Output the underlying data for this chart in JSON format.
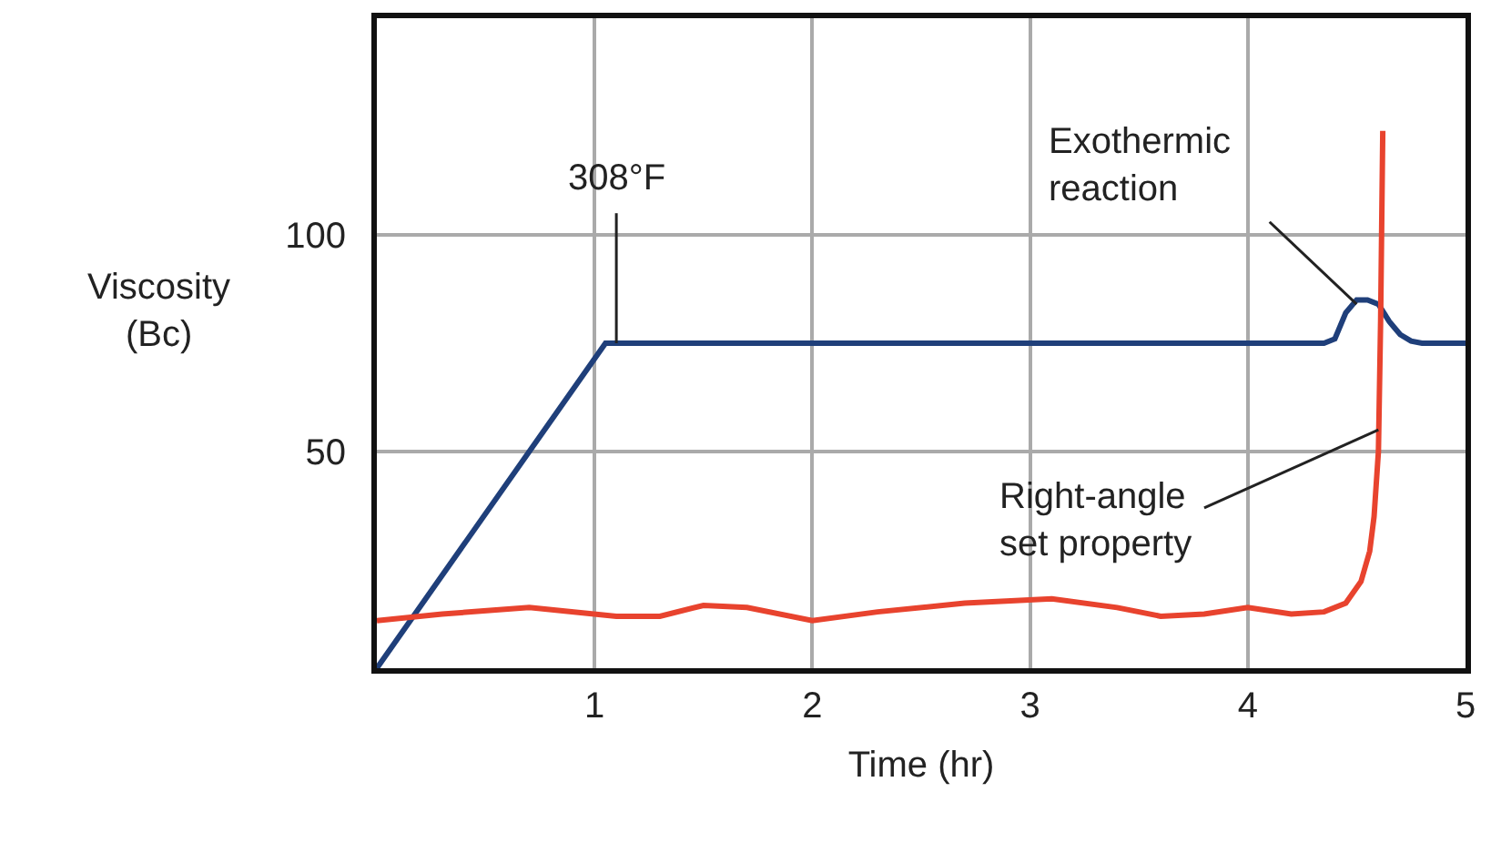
{
  "chart_data": {
    "type": "line",
    "xlabel": "Time (hr)",
    "ylabel": "Viscosity\n(Bc)",
    "xlim": [
      0,
      5
    ],
    "ylim": [
      0,
      150
    ],
    "xticks": [
      1,
      2,
      3,
      4,
      5
    ],
    "yticks": [
      50,
      100
    ],
    "grid": true,
    "marker": "none",
    "line_style": "solid",
    "series": [
      {
        "color": "#1f3f7a",
        "x": [
          0,
          1.05,
          4.35,
          4.4,
          4.45,
          4.5,
          4.55,
          4.6,
          4.65,
          4.7,
          4.75,
          4.8,
          4.9,
          5
        ],
        "values": [
          0,
          75,
          75,
          76,
          82,
          85,
          85,
          84,
          80,
          77,
          75.5,
          75,
          75,
          75
        ]
      },
      {
        "color": "#e8432e",
        "x": [
          0,
          0.3,
          0.7,
          1.1,
          1.3,
          1.5,
          1.7,
          2,
          2.3,
          2.7,
          3.1,
          3.4,
          3.6,
          3.8,
          4,
          4.2,
          4.35,
          4.45,
          4.52,
          4.56,
          4.58,
          4.6,
          4.61,
          4.62
        ],
        "values": [
          11,
          12.5,
          14,
          12,
          12,
          14.5,
          14,
          11,
          13,
          15,
          16,
          14,
          12,
          12.5,
          14,
          12.5,
          13,
          15,
          20,
          27,
          35,
          50,
          80,
          124
        ]
      }
    ],
    "annotations": [
      {
        "text": "308°F",
        "x": 1.1,
        "y": 75
      },
      {
        "text": "Exothermic\nreaction",
        "x": 4.5,
        "y": 84
      },
      {
        "text": "Right-angle\nset property",
        "x": 4.6,
        "y": 55
      }
    ]
  }
}
